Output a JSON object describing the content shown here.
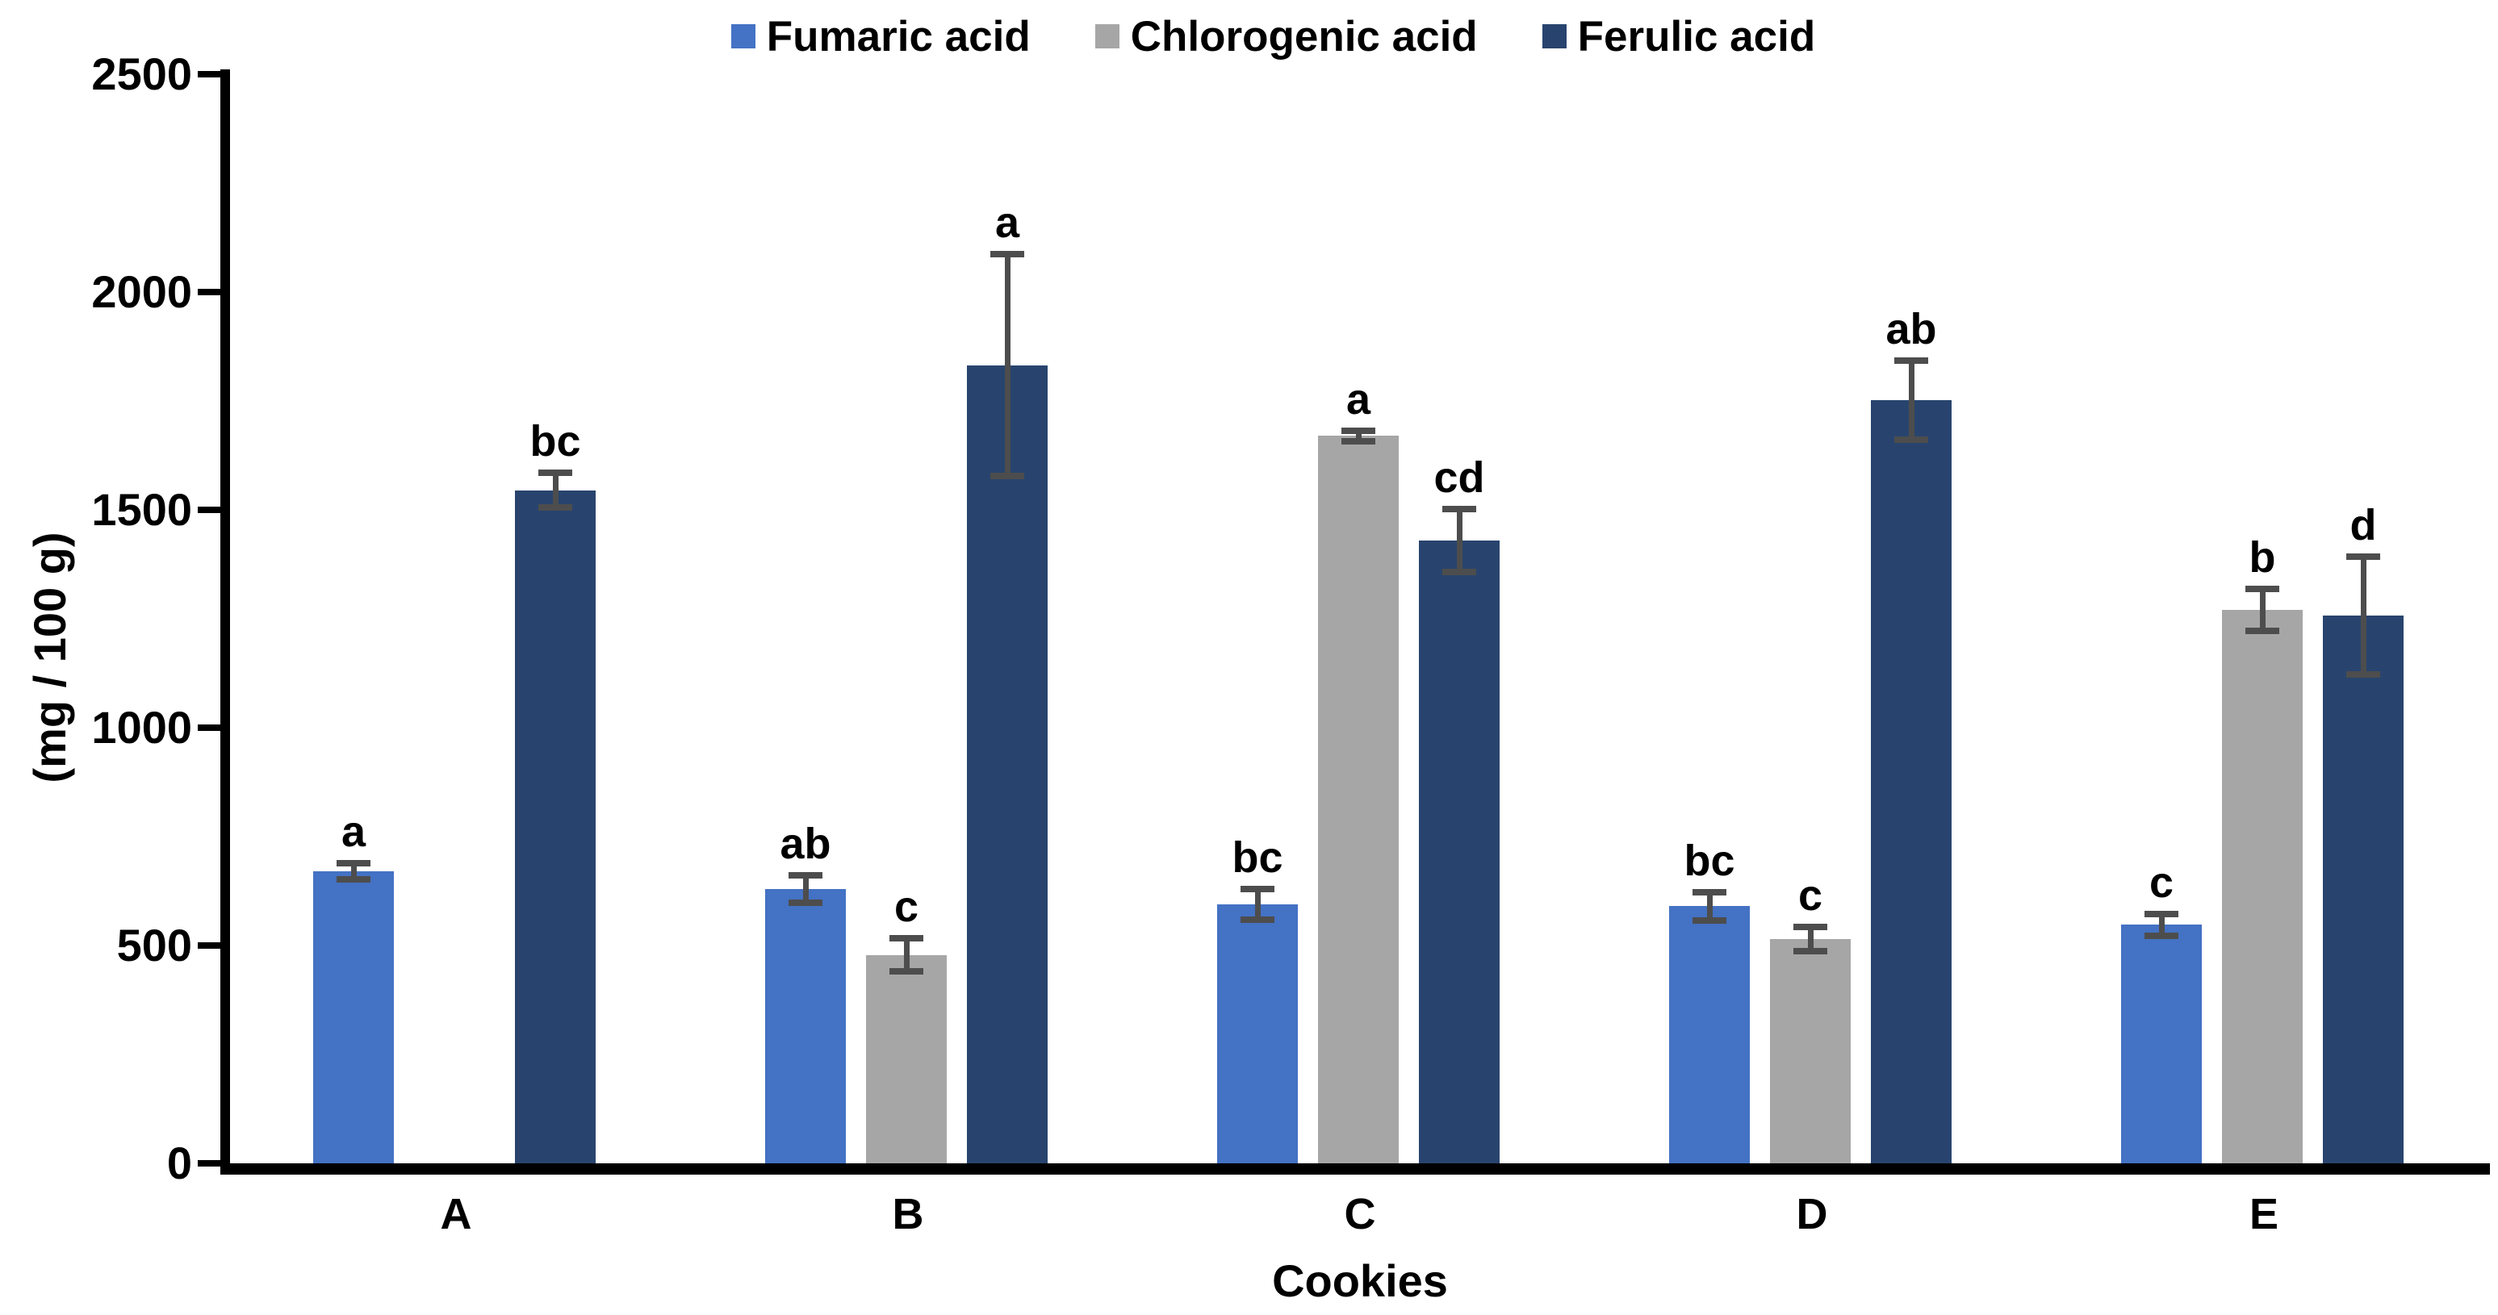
{
  "chart_data": {
    "type": "bar",
    "title": "",
    "xlabel": "Cookies",
    "ylabel": "(mg / 100 g)",
    "ylim": [
      0,
      2500
    ],
    "yticks": [
      0,
      500,
      1000,
      1500,
      2000,
      2500
    ],
    "categories": [
      "A",
      "B",
      "C",
      "D",
      "E"
    ],
    "series": [
      {
        "name": "Fumaric acid",
        "color": "#4472C4",
        "values": [
          670,
          630,
          595,
          590,
          548
        ],
        "errors": [
          18,
          32,
          35,
          33,
          25
        ],
        "letters": [
          "a",
          "ab",
          "bc",
          "bc",
          "c"
        ]
      },
      {
        "name": "Chlorogenic acid",
        "color": "#A6A6A6",
        "values": [
          null,
          478,
          1670,
          515,
          1270
        ],
        "errors": [
          null,
          38,
          12,
          28,
          48
        ],
        "letters": [
          "",
          "c",
          "a",
          "c",
          "b"
        ]
      },
      {
        "name": "Ferulic acid",
        "color": "#28446E",
        "values": [
          1545,
          1832,
          1430,
          1752,
          1258
        ],
        "errors": [
          40,
          255,
          72,
          90,
          135
        ],
        "letters": [
          "bc",
          "a",
          "cd",
          "ab",
          "d"
        ]
      }
    ],
    "error_bar_color": "#4D4D4D",
    "axis_color": "#000000",
    "background_color": "#FFFFFF",
    "grid": "off",
    "legend_position": "top"
  }
}
